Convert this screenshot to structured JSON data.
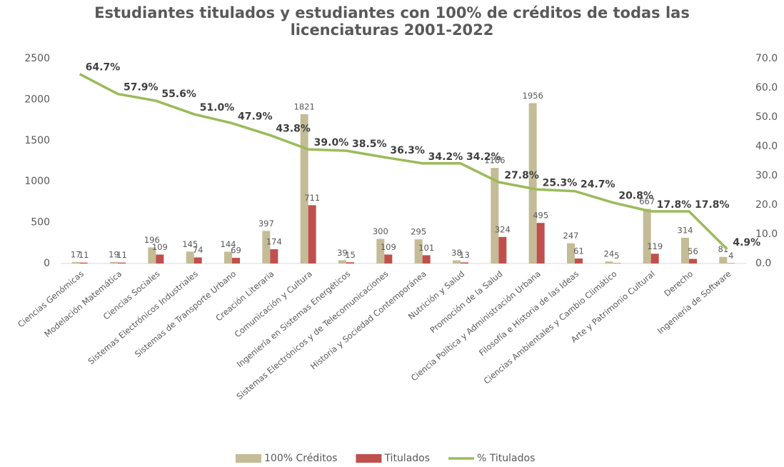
{
  "chart_data": {
    "type": "combo",
    "title": "Estudiantes titulados y estudiantes con 100% de créditos de todas las licenciaturas 2001-2022",
    "categories": [
      "Ciencias Genómicas",
      "Modelación Matemática",
      "Ciencias Sociales",
      "Sistemas Electrónicos Industriales",
      "Sistemas de Transporte Urbano",
      "Creación Literaria",
      "Comunicación y Cultura",
      "Ingeniería en Sistemas Energéticos",
      "Sistemas Electrónicos y de Telecomunicaciones",
      "Historia y Sociedad Contemporánea",
      "Nutrición y Salud",
      "Promoción de la Salud",
      "Ciencia Política y Administración Urbana",
      "Filosofía e Historia de las Ideas",
      "Ciencias Ambientales y Cambio Climático",
      "Arte y Patrimonio Cultural",
      "Derecho",
      "Ingeniería de Software"
    ],
    "series": [
      {
        "name": "100% Créditos",
        "type": "bar",
        "color": "#c4bc96",
        "values": [
          17,
          19,
          196,
          145,
          144,
          397,
          1821,
          39,
          300,
          295,
          38,
          1166,
          1956,
          247,
          24,
          667,
          314,
          81
        ]
      },
      {
        "name": "Titulados",
        "type": "bar",
        "color": "#c0504d",
        "values": [
          11,
          11,
          109,
          74,
          69,
          174,
          711,
          15,
          109,
          101,
          13,
          324,
          495,
          61,
          5,
          119,
          56,
          4
        ]
      },
      {
        "name": "% Titulados",
        "type": "line",
        "axis": "y2",
        "color": "#9bbb59",
        "values": [
          64.7,
          57.9,
          55.6,
          51.0,
          47.9,
          43.8,
          39.0,
          38.5,
          36.3,
          34.2,
          34.2,
          27.8,
          25.3,
          24.7,
          20.8,
          17.8,
          17.8,
          4.9
        ],
        "value_labels": [
          "64.7%",
          "57.9%",
          "55.6%",
          "51.0%",
          "47.9%",
          "43.8%",
          "39.0%",
          "38.5%",
          "36.3%",
          "34.2%",
          "34.2%",
          "27.8%",
          "25.3%",
          "24.7%",
          "20.8%",
          "17.8%",
          "17.8%",
          "4.9%"
        ]
      }
    ],
    "ylim": [
      0,
      2500
    ],
    "yticks": [
      0,
      500,
      1000,
      1500,
      2000,
      2500
    ],
    "y2lim": [
      0,
      70
    ],
    "y2ticks": [
      {
        "value": 0,
        "label": "0.0"
      },
      {
        "value": 10,
        "label": "10.0"
      },
      {
        "value": 20,
        "label": "20.0"
      },
      {
        "value": 30,
        "label": "30.0"
      },
      {
        "value": 40,
        "label": "40.0"
      },
      {
        "value": 50,
        "label": "50.0"
      },
      {
        "value": 60,
        "label": "60.0"
      },
      {
        "value": 70,
        "label": "70.0"
      }
    ],
    "legend": "bottom",
    "grid": false
  }
}
